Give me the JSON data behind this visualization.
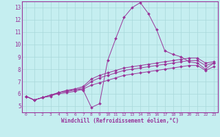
{
  "xlabel": "Windchill (Refroidissement éolien,°C)",
  "bg_color": "#c5eef0",
  "grid_color": "#a8d8da",
  "line_color": "#993399",
  "xlim": [
    -0.5,
    23.5
  ],
  "ylim": [
    4.5,
    13.5
  ],
  "xticks": [
    0,
    1,
    2,
    3,
    4,
    5,
    6,
    7,
    8,
    9,
    10,
    11,
    12,
    13,
    14,
    15,
    16,
    17,
    18,
    19,
    20,
    21,
    22,
    23
  ],
  "yticks": [
    5,
    6,
    7,
    8,
    9,
    10,
    11,
    12,
    13
  ],
  "series": [
    [
      5.8,
      5.5,
      5.7,
      5.8,
      6.1,
      6.2,
      6.4,
      6.3,
      4.9,
      5.2,
      8.7,
      10.5,
      12.2,
      13.0,
      13.4,
      12.5,
      11.2,
      9.5,
      9.2,
      9.0,
      8.6,
      8.5,
      8.0,
      8.5
    ],
    [
      5.8,
      5.5,
      5.7,
      5.9,
      6.1,
      6.2,
      6.3,
      6.5,
      7.0,
      7.3,
      7.5,
      7.7,
      7.9,
      8.0,
      8.1,
      8.2,
      8.3,
      8.4,
      8.5,
      8.6,
      8.7,
      8.7,
      8.3,
      8.5
    ],
    [
      5.8,
      5.5,
      5.7,
      5.9,
      6.0,
      6.1,
      6.2,
      6.4,
      6.7,
      6.9,
      7.1,
      7.3,
      7.5,
      7.6,
      7.7,
      7.8,
      7.9,
      8.0,
      8.1,
      8.2,
      8.3,
      8.3,
      7.9,
      8.2
    ],
    [
      5.8,
      5.5,
      5.7,
      5.9,
      6.1,
      6.3,
      6.4,
      6.6,
      7.2,
      7.5,
      7.7,
      7.9,
      8.1,
      8.2,
      8.3,
      8.4,
      8.5,
      8.6,
      8.7,
      8.8,
      8.9,
      8.9,
      8.5,
      8.6
    ]
  ]
}
